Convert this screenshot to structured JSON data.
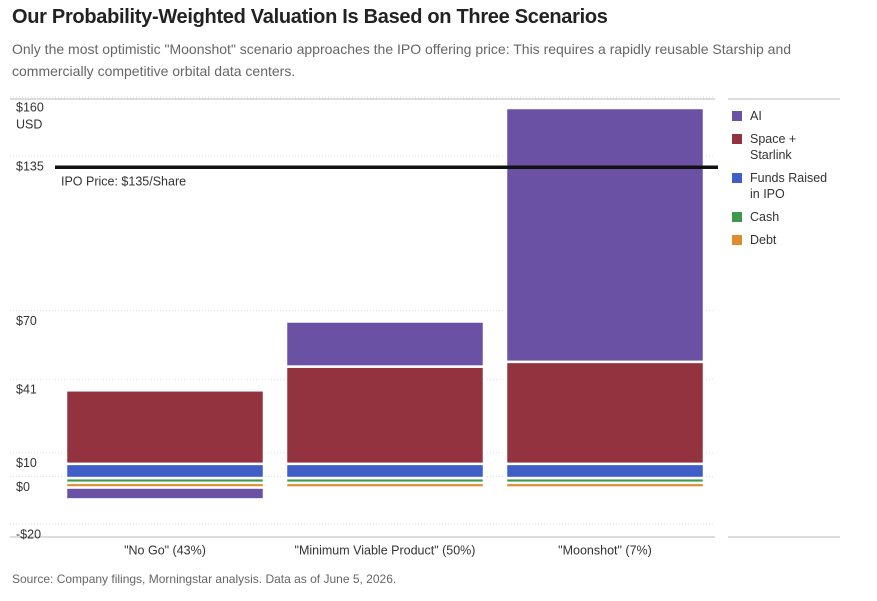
{
  "chart_data": {
    "type": "stacked_bar",
    "title": "Our Probability-Weighted Valuation Is Based on Three Scenarios",
    "subtitle": "Only the most optimistic \"Moonshot\" scenario approaches the IPO offering price: This requires a rapidly reusable Starship and commercially competitive orbital data centers.",
    "y_unit": "USD",
    "categories": [
      "\"No Go\" (43%)",
      "\"Minimum Viable Product\" (50%)",
      "\"Moonshot\" (7%)"
    ],
    "series": [
      {
        "name": "AI",
        "color": "#6a51a3",
        "values": [
          -5,
          19,
          107
        ]
      },
      {
        "name": "Space + Starlink",
        "color": "#93333f",
        "values": [
          31,
          41,
          43
        ]
      },
      {
        "name": "Funds Raised in IPO",
        "color": "#3f5ec8",
        "values": [
          6,
          6,
          6
        ]
      },
      {
        "name": "Cash",
        "color": "#3e9a4a",
        "values": [
          2,
          2,
          2
        ]
      },
      {
        "name": "Debt",
        "color": "#e08b2c",
        "values": [
          2,
          2,
          2
        ]
      }
    ],
    "ref_line": {
      "value": 135,
      "label": "IPO Price: $135/Share"
    },
    "ylim": [
      -20,
      160
    ],
    "yticks": [
      {
        "value": 160,
        "label": "$160"
      },
      {
        "value": 135,
        "label": "$135"
      },
      {
        "value": 70,
        "label": "$70"
      },
      {
        "value": 41,
        "label": "$41"
      },
      {
        "value": 10,
        "label": "$10"
      },
      {
        "value": 0,
        "label": "$0"
      },
      {
        "value": -20,
        "label": "-$20"
      }
    ],
    "grid": true,
    "legend": "right",
    "source": "Source: Company filings, Morningstar analysis. Data as of June 5, 2026."
  }
}
